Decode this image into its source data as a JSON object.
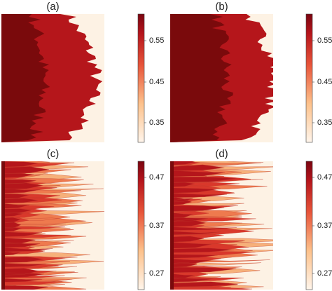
{
  "panels": [
    {
      "label": "(a)",
      "colorbar": [
        "0.55",
        "0.45",
        "0.35"
      ]
    },
    {
      "label": "(b)",
      "colorbar": [
        "0.554",
        "0.454",
        "0.354"
      ]
    },
    {
      "label": "(c)",
      "colorbar": [
        "0.47",
        "0.37",
        "0.27"
      ]
    },
    {
      "label": "(d)",
      "colorbar": [
        "0.47",
        "0.37",
        "0.27"
      ]
    }
  ]
}
